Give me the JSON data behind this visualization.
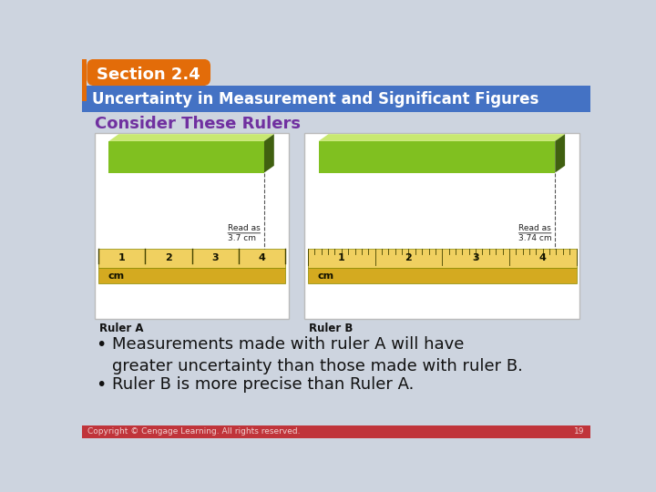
{
  "title_section": "Section 2.4",
  "title_main": "Uncertainty in Measurement and Significant Figures",
  "subtitle": "Consider These Rulers",
  "bullet1": "Measurements made with ruler A will have\ngreater uncertainty than those made with ruler B.",
  "bullet2": "Ruler B is more precise than Ruler A.",
  "ruler_a_label": "Read as\n3.7 cm",
  "ruler_b_label": "Read as\n3.74 cm",
  "ruler_a_title": "Ruler A",
  "ruler_b_title": "Ruler B",
  "cm_label": "cm",
  "ruler_ticks_a": [
    1,
    2,
    3,
    4
  ],
  "ruler_ticks_b": [
    1,
    2,
    3,
    4
  ],
  "bg_color": "#cdd4df",
  "header_bg": "#4472c4",
  "section_tab_bg": "#e36c09",
  "section_tab_text": "#ffffff",
  "title_text_color": "#ffffff",
  "subtitle_color": "#7030a0",
  "footer_bg": "#c0343a",
  "footer_text": "Copyright © Cengage Learning. All rights reserved.",
  "footer_number": "19",
  "ruler_gold_light": "#f0d060",
  "ruler_gold": "#d4aa20",
  "ruler_gold_dark": "#b89010",
  "object_green_top": "#c8e870",
  "object_green_face": "#80c020",
  "object_green_side": "#406010",
  "ruler_img_bg": "#f0f2f5",
  "ruler_border": "#bbbbbb",
  "img_box_bg": "#ffffff"
}
